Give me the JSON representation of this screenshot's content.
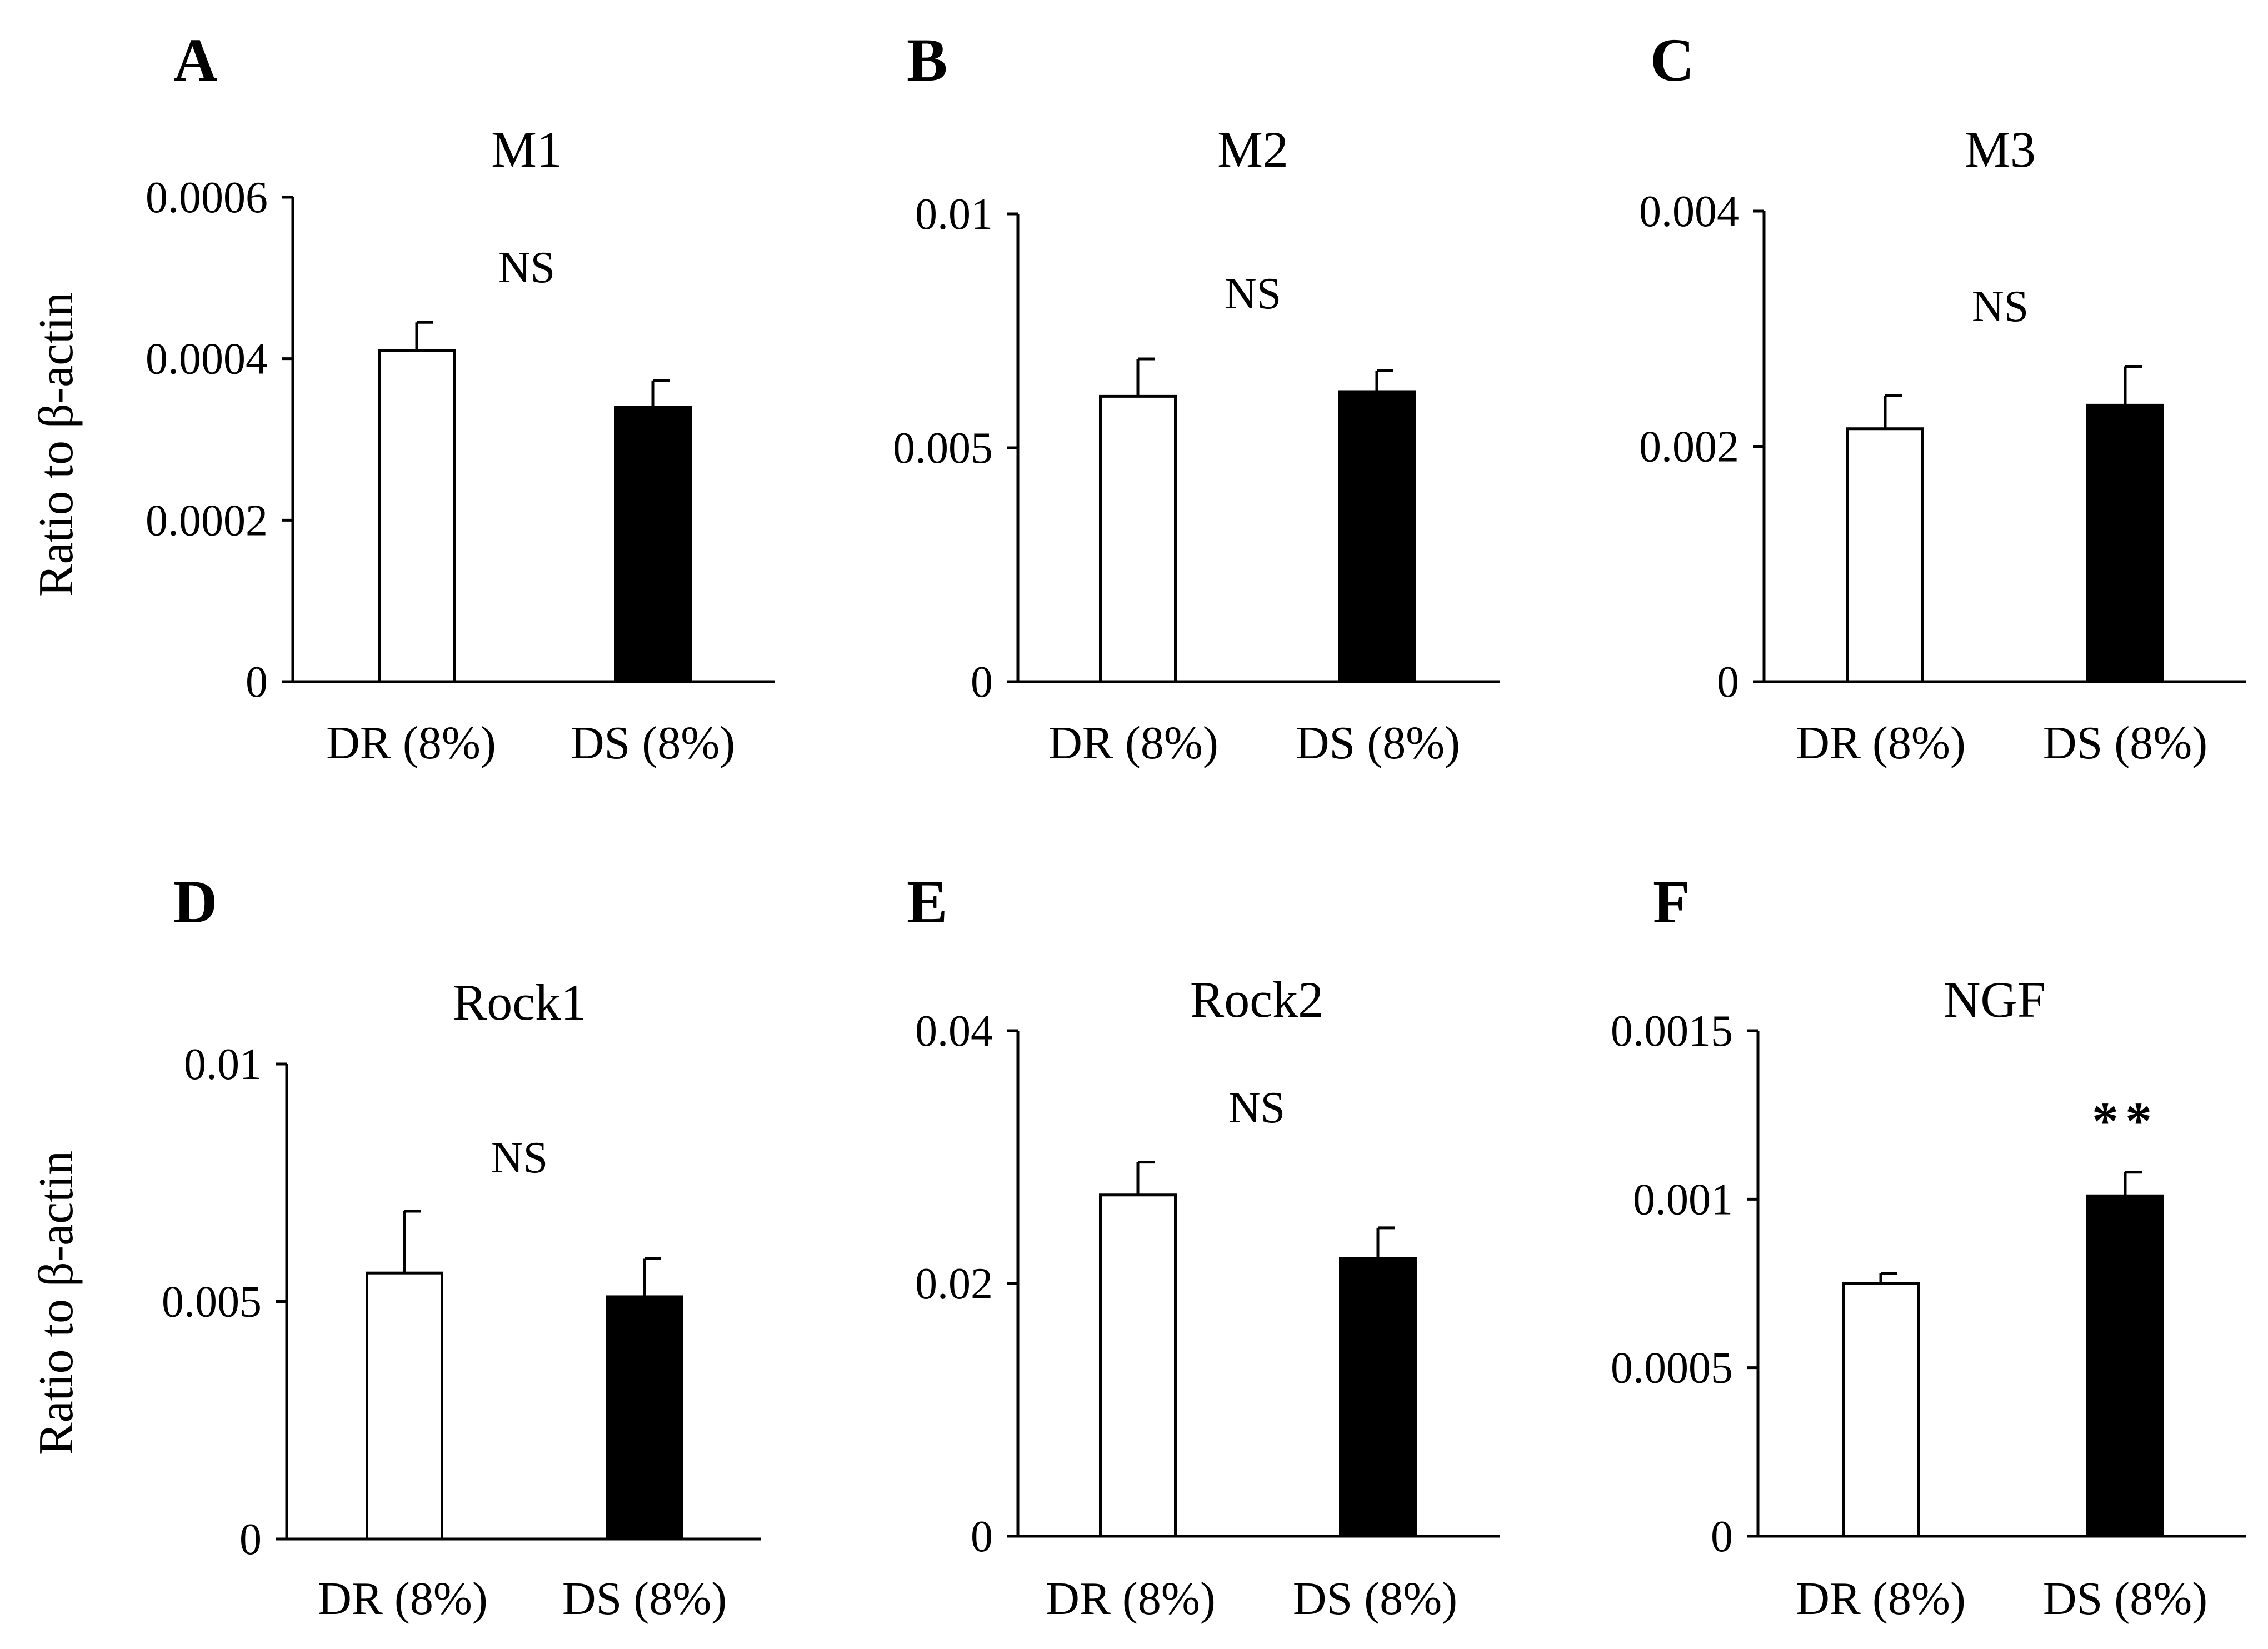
{
  "colors": {
    "dr_fill": "#ffffff",
    "ds_fill": "#000000",
    "stroke": "#000000"
  },
  "ylabel": "Ratio to β-actin",
  "chart_data": [
    {
      "type": "bar",
      "panel": "A",
      "title": "M1",
      "categories": [
        "DR (8%)",
        "DS (8%)"
      ],
      "values": [
        0.00041,
        0.00034
      ],
      "errors": [
        3.5e-05,
        3.3e-05
      ],
      "ylim": [
        0,
        0.0006
      ],
      "yticks": [
        0,
        0.0002,
        0.0004,
        0.0006
      ],
      "ytick_labels": [
        "0",
        "0.0002",
        "0.0004",
        "0.0006"
      ],
      "annotation": "NS",
      "annotation_bold": false
    },
    {
      "type": "bar",
      "panel": "B",
      "title": "M2",
      "categories": [
        "DR (8%)",
        "DS (8%)"
      ],
      "values": [
        0.0061,
        0.0062
      ],
      "errors": [
        0.0008,
        0.00045
      ],
      "ylim": [
        0,
        0.01
      ],
      "yticks": [
        0,
        0.005,
        0.01
      ],
      "ytick_labels": [
        "0",
        "0.005",
        "0.01"
      ],
      "annotation": "NS",
      "annotation_bold": false
    },
    {
      "type": "bar",
      "panel": "C",
      "title": "M3",
      "categories": [
        "DR (8%)",
        "DS (8%)"
      ],
      "values": [
        0.00215,
        0.00235
      ],
      "errors": [
        0.00028,
        0.00033
      ],
      "ylim": [
        0,
        0.004
      ],
      "yticks": [
        0,
        0.002,
        0.004
      ],
      "ytick_labels": [
        "0",
        "0.002",
        "0.004"
      ],
      "annotation": "NS",
      "annotation_bold": false
    },
    {
      "type": "bar",
      "panel": "D",
      "title": "Rock1",
      "categories": [
        "DR (8%)",
        "DS (8%)"
      ],
      "values": [
        0.0056,
        0.0051
      ],
      "errors": [
        0.0013,
        0.0008
      ],
      "ylim": [
        0,
        0.01
      ],
      "yticks": [
        0,
        0.005,
        0.01
      ],
      "ytick_labels": [
        "0",
        "0.005",
        "0.01"
      ],
      "annotation": "NS",
      "annotation_bold": false
    },
    {
      "type": "bar",
      "panel": "E",
      "title": "Rock2",
      "categories": [
        "DR (8%)",
        "DS (8%)"
      ],
      "values": [
        0.027,
        0.022
      ],
      "errors": [
        0.0026,
        0.0024
      ],
      "ylim": [
        0,
        0.04
      ],
      "yticks": [
        0,
        0.02,
        0.04
      ],
      "ytick_labels": [
        "0",
        "0.02",
        "0.04"
      ],
      "annotation": "NS",
      "annotation_bold": false
    },
    {
      "type": "bar",
      "panel": "F",
      "title": "NGF",
      "categories": [
        "DR (8%)",
        "DS (8%)"
      ],
      "values": [
        0.00075,
        0.00101
      ],
      "errors": [
        3e-05,
        7e-05
      ],
      "ylim": [
        0,
        0.0015
      ],
      "yticks": [
        0,
        0.0005,
        0.001,
        0.0015
      ],
      "ytick_labels": [
        "0",
        "0.0005",
        "0.001",
        "0.0015"
      ],
      "annotation": "**",
      "annotation_bold": true
    }
  ]
}
